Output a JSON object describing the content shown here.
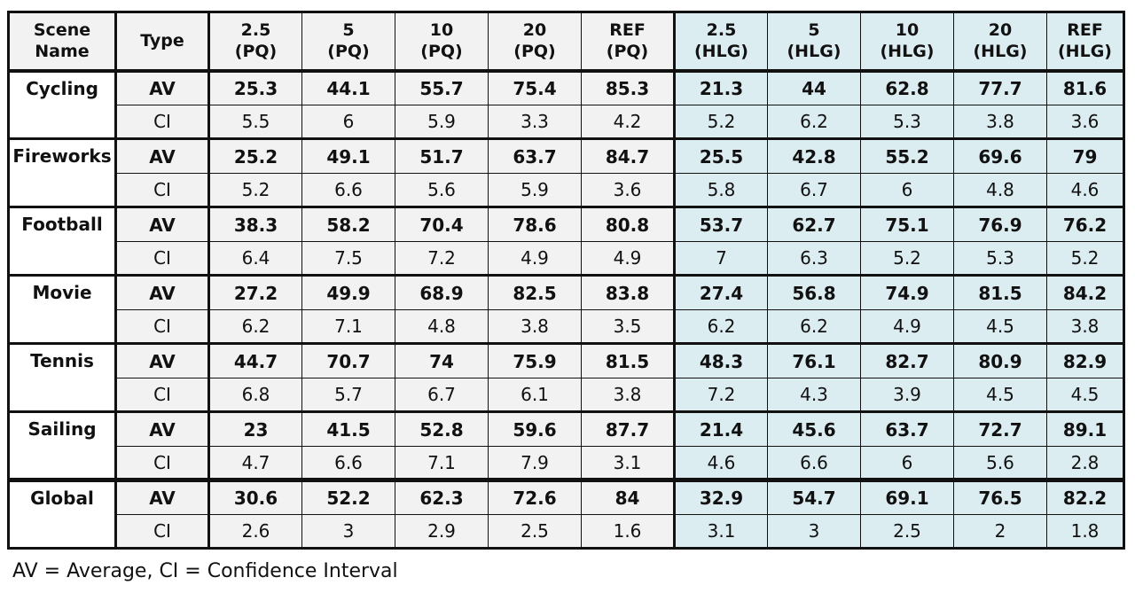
{
  "headers": {
    "scene": "Scene\nName",
    "type": "Type",
    "pq25": "2.5\n(PQ)",
    "pq5": "5\n(PQ)",
    "pq10": "10\n(PQ)",
    "pq20": "20\n(PQ)",
    "pqref": "REF\n(PQ)",
    "hlg25": "2.5\n(HLG)",
    "hlg5": "5\n(HLG)",
    "hlg10": "10\n(HLG)",
    "hlg20": "20\n(HLG)",
    "hlgref": "REF\n(HLG)"
  },
  "labels": {
    "av": "AV",
    "ci": "CI"
  },
  "rows": [
    {
      "scene": "Cycling",
      "av": [
        "25.3",
        "44.1",
        "55.7",
        "75.4",
        "85.3",
        "21.3",
        "44",
        "62.8",
        "77.7",
        "81.6"
      ],
      "ci": [
        "5.5",
        "6",
        "5.9",
        "3.3",
        "4.2",
        "5.2",
        "6.2",
        "5.3",
        "3.8",
        "3.6"
      ]
    },
    {
      "scene": "Fireworks",
      "av": [
        "25.2",
        "49.1",
        "51.7",
        "63.7",
        "84.7",
        "25.5",
        "42.8",
        "55.2",
        "69.6",
        "79"
      ],
      "ci": [
        "5.2",
        "6.6",
        "5.6",
        "5.9",
        "3.6",
        "5.8",
        "6.7",
        "6",
        "4.8",
        "4.6"
      ]
    },
    {
      "scene": "Football",
      "av": [
        "38.3",
        "58.2",
        "70.4",
        "78.6",
        "80.8",
        "53.7",
        "62.7",
        "75.1",
        "76.9",
        "76.2"
      ],
      "ci": [
        "6.4",
        "7.5",
        "7.2",
        "4.9",
        "4.9",
        "7",
        "6.3",
        "5.2",
        "5.3",
        "5.2"
      ]
    },
    {
      "scene": "Movie",
      "av": [
        "27.2",
        "49.9",
        "68.9",
        "82.5",
        "83.8",
        "27.4",
        "56.8",
        "74.9",
        "81.5",
        "84.2"
      ],
      "ci": [
        "6.2",
        "7.1",
        "4.8",
        "3.8",
        "3.5",
        "6.2",
        "6.2",
        "4.9",
        "4.5",
        "3.8"
      ]
    },
    {
      "scene": "Tennis",
      "av": [
        "44.7",
        "70.7",
        "74",
        "75.9",
        "81.5",
        "48.3",
        "76.1",
        "82.7",
        "80.9",
        "82.9"
      ],
      "ci": [
        "6.8",
        "5.7",
        "6.7",
        "6.1",
        "3.8",
        "7.2",
        "4.3",
        "3.9",
        "4.5",
        "4.5"
      ]
    },
    {
      "scene": "Sailing",
      "av": [
        "23",
        "41.5",
        "52.8",
        "59.6",
        "87.7",
        "21.4",
        "45.6",
        "63.7",
        "72.7",
        "89.1"
      ],
      "ci": [
        "4.7",
        "6.6",
        "7.1",
        "7.9",
        "3.1",
        "4.6",
        "6.6",
        "6",
        "5.6",
        "2.8"
      ]
    },
    {
      "scene": "Global",
      "av": [
        "30.6",
        "52.2",
        "62.3",
        "72.6",
        "84",
        "32.9",
        "54.7",
        "69.1",
        "76.5",
        "82.2"
      ],
      "ci": [
        "2.6",
        "3",
        "2.9",
        "2.5",
        "1.6",
        "3.1",
        "3",
        "2.5",
        "2",
        "1.8"
      ]
    }
  ],
  "footnote": "AV = Average,  CI = Confidence Interval"
}
